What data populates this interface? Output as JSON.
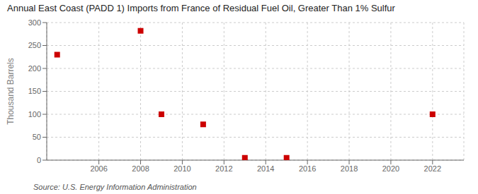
{
  "chart_data": {
    "type": "scatter",
    "title": "Annual East Coast (PADD 1) Imports from France of Residual Fuel Oil, Greater Than 1% Sulfur",
    "ylabel": "Thousand Barrels",
    "source": "Source: U.S. Energy Information Administration",
    "x": [
      2004,
      2008,
      2009,
      2011,
      2013,
      2015,
      2022
    ],
    "values": [
      230,
      282,
      100,
      78,
      5,
      5,
      100
    ],
    "color": "#cc0000",
    "marker": "square",
    "xlim": [
      2003.5,
      2023.5
    ],
    "ylim": [
      0,
      300
    ],
    "xticks": [
      2006,
      2008,
      2010,
      2012,
      2014,
      2016,
      2018,
      2020,
      2022
    ],
    "yticks": [
      0,
      50,
      100,
      150,
      200,
      250,
      300
    ],
    "grid": true
  }
}
